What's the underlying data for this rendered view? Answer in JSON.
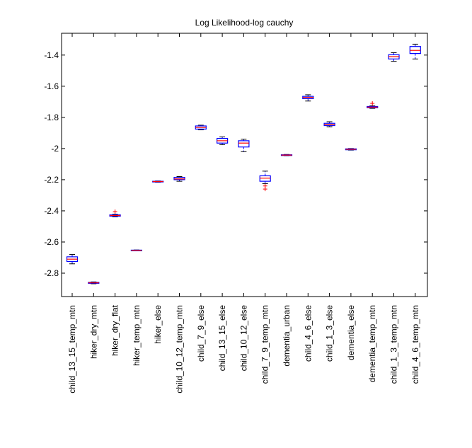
{
  "chart_data": {
    "type": "box",
    "title": "Log Likelihood-log cauchy",
    "xlabel": "",
    "ylabel": "",
    "ylim": [
      -2.95,
      -1.26
    ],
    "y_ticks": [
      -2.8,
      -2.6,
      -2.4,
      -2.2,
      -2.0,
      -1.8,
      -1.6,
      -1.4
    ],
    "y_tick_labels": [
      "-2.8",
      "-2.6",
      "-2.4",
      "-2.2",
      "-2",
      "-1.8",
      "-1.6",
      "-1.4"
    ],
    "grid": false,
    "colors": {
      "box": "#0000ff",
      "median": "#ff0000",
      "outlier": "#ff0000",
      "axes": "#000000"
    },
    "categories": [
      "child_13_15_temp_mtn",
      "hiker_dry_mtn",
      "hiker_dry_flat",
      "hiker_temp_mtn",
      "hiker_else",
      "child_10_12_temp_mtn",
      "child_7_9_else",
      "child_13_15_else",
      "child_10_12_else",
      "child_7_9_temp_mtn",
      "dementia_urban",
      "child_4_6_else",
      "child_1_3_else",
      "dementia_else",
      "dementia_temp_mtn",
      "child_1_3_temp_mtn",
      "child_4_6_temp_mtn"
    ],
    "boxes": [
      {
        "whisker_low": -2.74,
        "q1": -2.725,
        "median": -2.71,
        "q3": -2.695,
        "whisker_high": -2.68,
        "outliers": []
      },
      {
        "whisker_low": -2.868,
        "q1": -2.865,
        "median": -2.862,
        "q3": -2.859,
        "whisker_high": -2.856,
        "outliers": []
      },
      {
        "whisker_low": -2.438,
        "q1": -2.434,
        "median": -2.43,
        "q3": -2.426,
        "whisker_high": -2.422,
        "outliers": [
          -2.405
        ]
      },
      {
        "whisker_low": -2.655,
        "q1": -2.654,
        "median": -2.653,
        "q3": -2.652,
        "whisker_high": -2.651,
        "outliers": []
      },
      {
        "whisker_low": -2.216,
        "q1": -2.214,
        "median": -2.212,
        "q3": -2.21,
        "whisker_high": -2.208,
        "outliers": []
      },
      {
        "whisker_low": -2.21,
        "q1": -2.2,
        "median": -2.195,
        "q3": -2.185,
        "whisker_high": -2.18,
        "outliers": []
      },
      {
        "whisker_low": -1.88,
        "q1": -1.875,
        "median": -1.865,
        "q3": -1.855,
        "whisker_high": -1.85,
        "outliers": []
      },
      {
        "whisker_low": -1.975,
        "q1": -1.965,
        "median": -1.95,
        "q3": -1.935,
        "whisker_high": -1.925,
        "outliers": []
      },
      {
        "whisker_low": -2.02,
        "q1": -1.99,
        "median": -1.965,
        "q3": -1.95,
        "whisker_high": -1.94,
        "outliers": []
      },
      {
        "whisker_low": -2.225,
        "q1": -2.21,
        "median": -2.19,
        "q3": -2.175,
        "whisker_high": -2.145,
        "outliers": [
          -2.24,
          -2.26
        ]
      },
      {
        "whisker_low": -2.046,
        "q1": -2.044,
        "median": -2.042,
        "q3": -2.04,
        "whisker_high": -2.038,
        "outliers": []
      },
      {
        "whisker_low": -1.695,
        "q1": -1.68,
        "median": -1.672,
        "q3": -1.665,
        "whisker_high": -1.655,
        "outliers": []
      },
      {
        "whisker_low": -1.86,
        "q1": -1.853,
        "median": -1.845,
        "q3": -1.838,
        "whisker_high": -1.828,
        "outliers": []
      },
      {
        "whisker_low": -2.01,
        "q1": -2.008,
        "median": -2.005,
        "q3": -2.002,
        "whisker_high": -2.0,
        "outliers": []
      },
      {
        "whisker_low": -1.742,
        "q1": -1.738,
        "median": -1.734,
        "q3": -1.73,
        "whisker_high": -1.726,
        "outliers": [
          -1.71
        ]
      },
      {
        "whisker_low": -1.44,
        "q1": -1.425,
        "median": -1.41,
        "q3": -1.398,
        "whisker_high": -1.385,
        "outliers": []
      },
      {
        "whisker_low": -1.425,
        "q1": -1.39,
        "median": -1.37,
        "q3": -1.345,
        "whisker_high": -1.33,
        "outliers": []
      }
    ]
  }
}
